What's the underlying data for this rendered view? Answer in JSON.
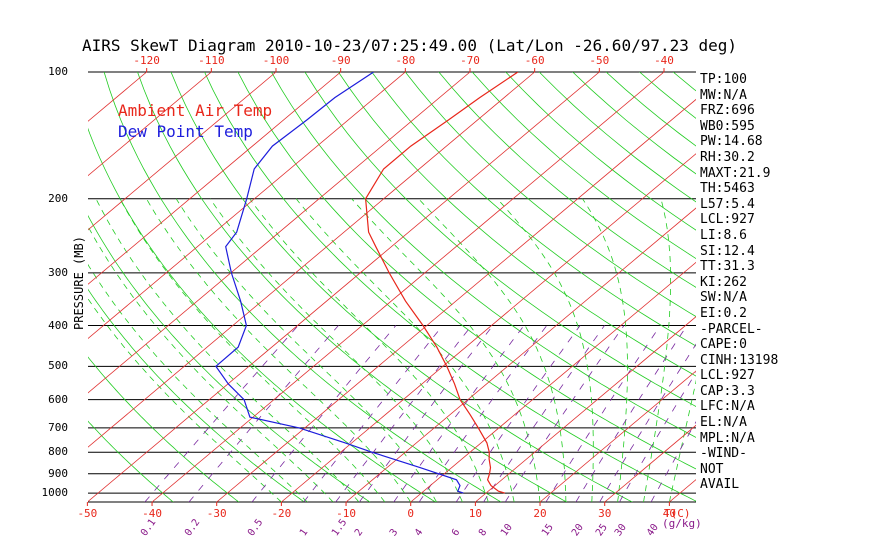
{
  "title": "AIRS SkewT Diagram 2010-10-23/07:25:49.00 (Lat/Lon -26.60/97.23 deg)",
  "legend": {
    "air": "Ambient Air Temp",
    "dew": "Dew Point Temp"
  },
  "colors": {
    "air": "#e8261a",
    "dew": "#1d1ddc",
    "dry_adiabat": "#22cc22",
    "moist_adiabat": "#22cc22",
    "mixing_ratio": "#7a2aa0",
    "isotherm": "#e03030",
    "isobar": "#000000"
  },
  "indices": [
    "TP:100",
    "MW:N/A",
    "FRZ:696",
    "WB0:595",
    "PW:14.68",
    "RH:30.2",
    "MAXT:21.9",
    "TH:5463",
    "L57:5.4",
    "LCL:927",
    "LI:8.6",
    "SI:12.4",
    "TT:31.3",
    "KI:262",
    "SW:N/A",
    "EI:0.2",
    "-PARCEL-",
    "CAPE:0",
    "CINH:13198",
    "LCL:927",
    "CAP:3.3",
    "LFC:N/A",
    "EL:N/A",
    "MPL:N/A",
    "-WIND-",
    "NOT",
    "AVAIL"
  ],
  "chart_data": {
    "type": "line",
    "title": "AIRS SkewT Diagram 2010-10-23/07:25:49.00 (Lat/Lon -26.60/97.23 deg)",
    "ylabel": "PRESSURE (MB)",
    "xlabel": "T(C)",
    "y_scale": "log",
    "ylim": [
      1050,
      100
    ],
    "pressure_ticks": [
      "100",
      "200",
      "300",
      "400",
      "500",
      "600",
      "700",
      "800",
      "900",
      "1000"
    ],
    "top_temp_ticks": [
      "-120",
      "-110",
      "-100",
      "-90",
      "-80",
      "-70",
      "-60",
      "-50",
      "-40"
    ],
    "bottom_temp_ticks": [
      "-50",
      "-40",
      "-30",
      "-20",
      "-10",
      "0",
      "10",
      "20",
      "30",
      "40"
    ],
    "mixing_ratio_ticks": [
      "0.1",
      "0.2",
      "0.5",
      "1",
      "1.5",
      "2",
      "3",
      "4",
      "6",
      "8",
      "10",
      "15",
      "20",
      "25",
      "30",
      "40"
    ],
    "temp_unit": "T(C)",
    "mix_unit": "(g/kg)",
    "series": [
      {
        "name": "Ambient Air Temp",
        "pressure": [
          1000,
          990,
          960,
          930,
          900,
          870,
          830,
          800,
          760,
          700,
          650,
          600,
          550,
          500,
          450,
          400,
          350,
          300,
          260,
          240,
          200,
          170,
          150,
          130,
          115,
          100
        ],
        "temp": [
          12.9,
          11.6,
          9.4,
          7.8,
          7.0,
          6.0,
          4.2,
          3.0,
          0.9,
          -3.2,
          -7.0,
          -11.2,
          -15.0,
          -19.4,
          -24.5,
          -30.6,
          -37.8,
          -45.5,
          -52.4,
          -56.2,
          -62.8,
          -65.5,
          -65.5,
          -64.5,
          -63.8,
          -62.6
        ]
      },
      {
        "name": "Dew Point Temp",
        "pressure": [
          1000,
          990,
          960,
          930,
          870,
          800,
          760,
          700,
          660,
          600,
          550,
          500,
          450,
          400,
          350,
          300,
          260,
          240,
          200,
          170,
          150,
          130,
          115,
          100
        ],
        "temp": [
          6.5,
          5.3,
          4.6,
          3.0,
          -4.9,
          -15.1,
          -21.0,
          -30.9,
          -40.5,
          -44.6,
          -50.0,
          -55.1,
          -55.2,
          -57.9,
          -63.3,
          -69.9,
          -75.6,
          -76.6,
          -81.2,
          -85.5,
          -86.9,
          -86.4,
          -86.2,
          -84.9
        ]
      }
    ]
  }
}
